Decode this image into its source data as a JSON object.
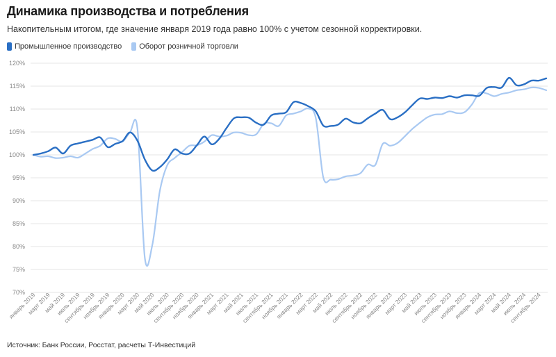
{
  "title": "Динамика производства и потребления",
  "subtitle": "Накопительным итогом, где значение января 2019 года равно 100% с учетом сезонной корректировки.",
  "source": "Источник: Банк России, Росстат, расчеты Т-Инвестиций",
  "colors": {
    "industrial": "#2a6fc4",
    "retail": "#a9c9f2",
    "grid": "#e4e4e4"
  },
  "chart_data": {
    "type": "line",
    "ylim": [
      70,
      120
    ],
    "yticks": [
      "70%",
      "75%",
      "80%",
      "85%",
      "90%",
      "95%",
      "100%",
      "105%",
      "110%",
      "115%",
      "120%"
    ],
    "grid": true,
    "legend": "top-left",
    "xtick_labels": [
      "январь 2019",
      "март 2019",
      "май 2019",
      "июль 2019",
      "сентябрь 2019",
      "ноябрь 2019",
      "январь 2020",
      "март 2020",
      "май 2020",
      "июль 2020",
      "сентябрь 2020",
      "ноябрь 2020",
      "январь 2021",
      "март 2021",
      "май 2021",
      "июль 2021",
      "сентябрь 2021",
      "ноябрь 2021",
      "январь 2022",
      "март 2022",
      "май 2022",
      "июль 2022",
      "сентябрь 2022",
      "ноябрь 2022",
      "январь 2023",
      "март 2023",
      "май 2023",
      "июль 2023",
      "сентябрь 2023",
      "ноябрь 2023",
      "январь 2024",
      "март 2024",
      "май 2024",
      "июль 2024",
      "сентябрь 2024"
    ],
    "series": [
      {
        "name": "Промышленное производство",
        "values": [
          100.0,
          100.3,
          100.8,
          101.6,
          100.3,
          102.0,
          102.5,
          102.9,
          103.3,
          103.8,
          101.7,
          102.4,
          103.0,
          104.9,
          103.1,
          99.0,
          96.6,
          97.3,
          99.0,
          101.2,
          100.3,
          100.3,
          102.1,
          104.0,
          102.3,
          103.5,
          105.9,
          108.0,
          108.2,
          108.1,
          107.0,
          106.6,
          108.6,
          109.0,
          109.3,
          111.5,
          111.3,
          110.6,
          109.5,
          106.4,
          106.3,
          106.6,
          107.9,
          107.1,
          106.9,
          108.0,
          109.0,
          109.8,
          107.8,
          108.2,
          109.3,
          110.9,
          112.3,
          112.2,
          112.5,
          112.4,
          112.8,
          112.5,
          113.0,
          113.0,
          112.9,
          114.6,
          114.8,
          114.7,
          116.8,
          115.2,
          115.4,
          116.2,
          116.2,
          116.7
        ]
      },
      {
        "name": "Оборот розничной торговли",
        "values": [
          100.0,
          99.6,
          99.7,
          99.3,
          99.4,
          99.7,
          99.4,
          100.3,
          101.3,
          102.0,
          103.6,
          103.5,
          102.9,
          104.9,
          105.8,
          77.5,
          80.3,
          92.0,
          97.7,
          99.3,
          100.6,
          102.0,
          102.1,
          102.9,
          104.3,
          104.0,
          104.2,
          104.9,
          104.8,
          104.3,
          104.5,
          106.8,
          106.9,
          106.3,
          108.6,
          109.0,
          109.5,
          110.1,
          108.0,
          95.1,
          94.6,
          94.7,
          95.3,
          95.5,
          96.0,
          97.9,
          97.8,
          102.4,
          102.0,
          102.6,
          104.1,
          105.7,
          107.0,
          108.2,
          108.8,
          108.9,
          109.5,
          109.1,
          109.3,
          111.0,
          113.5,
          113.4,
          112.8,
          113.3,
          113.6,
          114.1,
          114.3,
          114.7,
          114.6,
          114.1
        ]
      }
    ]
  }
}
